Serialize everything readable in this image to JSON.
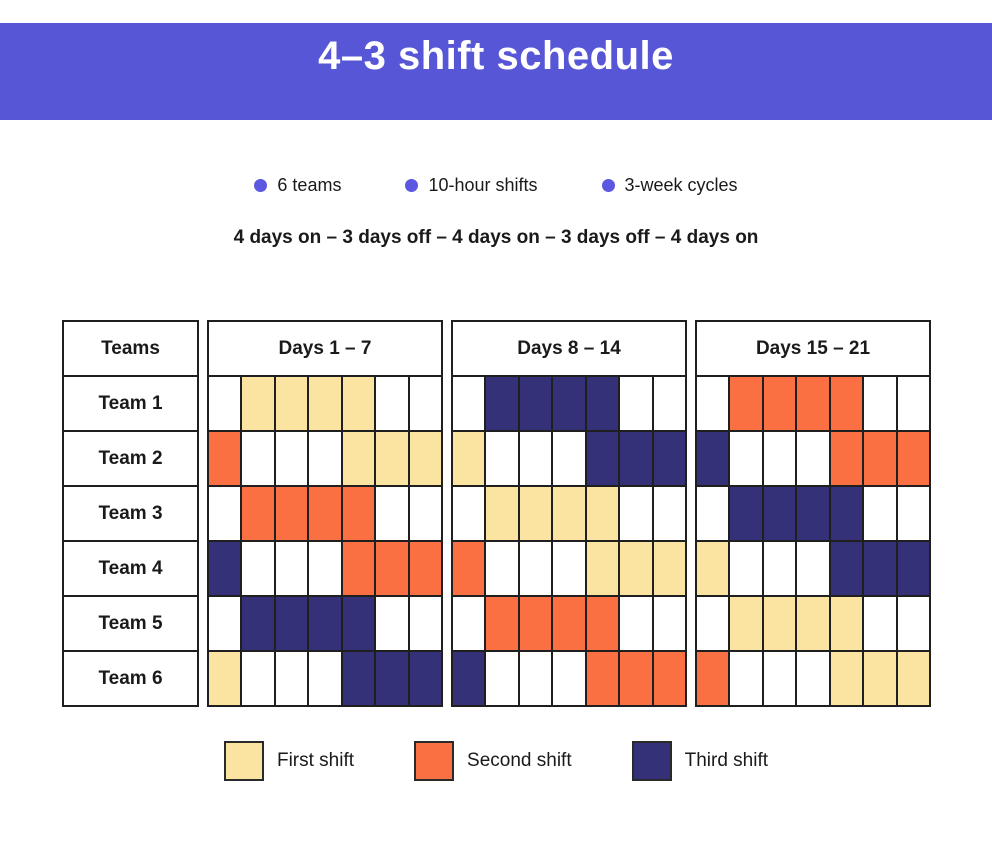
{
  "header": {
    "title": "4–3 shift schedule",
    "background": "#5656d6",
    "text_color": "#ffffff"
  },
  "facts": [
    {
      "label": "6 teams"
    },
    {
      "label": "10-hour shifts"
    },
    {
      "label": "3-week cycles"
    }
  ],
  "bullet_color": "#5b57e1",
  "cycle_pattern": "4 days on – 3 days off – 4 days on – 3 days off – 4 days on",
  "table": {
    "teams_header": "Teams",
    "week_headers": [
      "Days 1 – 7",
      "Days 8 – 14",
      "Days 15 – 21"
    ]
  },
  "legend": [
    {
      "label": "First shift",
      "color": "#fbe3a1"
    },
    {
      "label": "Second shift",
      "color": "#fa7043"
    },
    {
      "label": "Third shift",
      "color": "#343179"
    }
  ],
  "shift_colors": {
    "0": "#ffffff",
    "1": "#fbe3a1",
    "2": "#fa7043",
    "3": "#343179"
  },
  "grid_line_color": "#1f1f1f",
  "chart_data": {
    "type": "table",
    "title": "4–3 shift schedule",
    "subtitle_facts": [
      "6 teams",
      "10-hour shifts",
      "3-week cycles"
    ],
    "pattern": "4 days on – 3 days off – 4 days on – 3 days off – 4 days on",
    "week_columns": [
      "Days 1 – 7",
      "Days 8 – 14",
      "Days 15 – 21"
    ],
    "days_total": 21,
    "days_per_week": 7,
    "shift_codes": {
      "0": "Off",
      "1": "First shift",
      "2": "Second shift",
      "3": "Third shift"
    },
    "rows": [
      {
        "team": "Team 1",
        "days": [
          0,
          1,
          1,
          1,
          1,
          0,
          0,
          0,
          3,
          3,
          3,
          3,
          0,
          0,
          0,
          2,
          2,
          2,
          2,
          0,
          0
        ]
      },
      {
        "team": "Team 2",
        "days": [
          2,
          0,
          0,
          0,
          1,
          1,
          1,
          1,
          0,
          0,
          0,
          3,
          3,
          3,
          3,
          0,
          0,
          0,
          2,
          2,
          2
        ]
      },
      {
        "team": "Team 3",
        "days": [
          0,
          2,
          2,
          2,
          2,
          0,
          0,
          0,
          1,
          1,
          1,
          1,
          0,
          0,
          0,
          3,
          3,
          3,
          3,
          0,
          0
        ]
      },
      {
        "team": "Team 4",
        "days": [
          3,
          0,
          0,
          0,
          2,
          2,
          2,
          2,
          0,
          0,
          0,
          1,
          1,
          1,
          1,
          0,
          0,
          0,
          3,
          3,
          3
        ]
      },
      {
        "team": "Team 5",
        "days": [
          0,
          3,
          3,
          3,
          3,
          0,
          0,
          0,
          2,
          2,
          2,
          2,
          0,
          0,
          0,
          1,
          1,
          1,
          1,
          0,
          0
        ]
      },
      {
        "team": "Team 6",
        "days": [
          1,
          0,
          0,
          0,
          3,
          3,
          3,
          3,
          0,
          0,
          0,
          2,
          2,
          2,
          2,
          0,
          0,
          0,
          1,
          1,
          1
        ]
      }
    ]
  }
}
